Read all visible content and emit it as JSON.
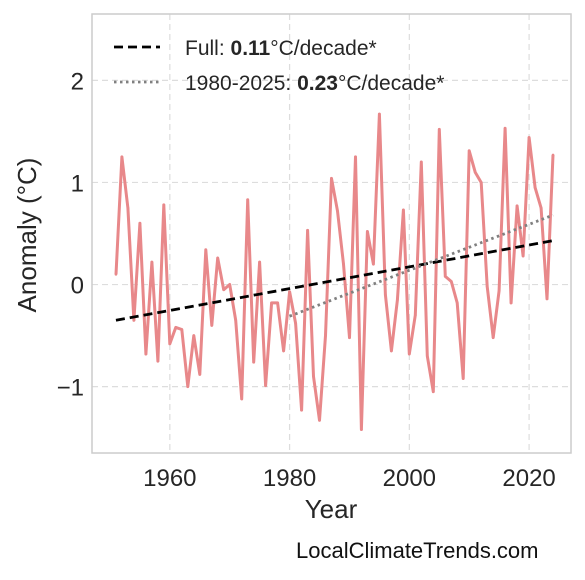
{
  "source_label": "LocalClimateTrends.com",
  "colors": {
    "series": "#e8888a",
    "full_trend": "#000000",
    "recent_trend": "#808080",
    "grid": "#dddddd",
    "frame": "#cccccc"
  },
  "legend": {
    "full": {
      "prefix": "Full: ",
      "value": "0.11",
      "suffix": "°C/decade*"
    },
    "recent": {
      "prefix": "1980-2025: ",
      "value": "0.23",
      "suffix": "°C/decade*"
    }
  },
  "chart_data": {
    "type": "line",
    "xlabel": "Year",
    "ylabel": "Anomaly (°C)",
    "xlim": [
      1947,
      2027
    ],
    "ylim": [
      -1.65,
      2.65
    ],
    "x_ticks": [
      1960,
      1980,
      2000,
      2020
    ],
    "x_tick_labels": [
      "1960",
      "1980",
      "2000",
      "2020"
    ],
    "y_ticks": [
      2,
      1,
      0,
      -1
    ],
    "y_tick_labels": [
      "2",
      "1",
      "0",
      "−1"
    ],
    "grid": true,
    "legend_position": "top-left",
    "series": [
      {
        "x": [
          1951,
          1952,
          1953,
          1954,
          1955,
          1956,
          1957,
          1958,
          1959,
          1960,
          1961,
          1962,
          1963,
          1964,
          1965,
          1966,
          1967,
          1968,
          1969,
          1970,
          1971,
          1972,
          1973,
          1974,
          1975,
          1976,
          1977,
          1978,
          1979,
          1980,
          1981,
          1982,
          1983,
          1984,
          1985,
          1986,
          1987,
          1988,
          1989,
          1990,
          1991,
          1992,
          1993,
          1994,
          1995,
          1996,
          1997,
          1998,
          1999,
          2000,
          2001,
          2002,
          2003,
          2004,
          2005,
          2006,
          2007,
          2008,
          2009,
          2010,
          2011,
          2012,
          2013,
          2014,
          2015,
          2016,
          2017,
          2018,
          2019,
          2020,
          2021,
          2022,
          2023,
          2024
        ],
        "y": [
          0.1,
          1.25,
          0.75,
          -0.35,
          0.6,
          -0.68,
          0.22,
          -0.75,
          0.78,
          -0.58,
          -0.42,
          -0.44,
          -1.0,
          -0.5,
          -0.88,
          0.34,
          -0.4,
          0.26,
          -0.05,
          0.0,
          -0.35,
          -1.12,
          0.83,
          -0.76,
          0.22,
          -0.99,
          -0.18,
          -0.18,
          -0.65,
          -0.07,
          -0.38,
          -1.23,
          0.53,
          -0.9,
          -1.33,
          -0.5,
          1.04,
          0.72,
          0.2,
          -0.52,
          1.25,
          -1.42,
          0.52,
          0.2,
          1.67,
          -0.1,
          -0.65,
          -0.15,
          0.73,
          -0.68,
          -0.3,
          1.2,
          -0.7,
          -1.05,
          1.52,
          0.08,
          0.03,
          -0.18,
          -0.92,
          1.31,
          1.1,
          1.0,
          -0.02,
          -0.52,
          -0.06,
          1.53,
          -0.18,
          0.77,
          0.28,
          1.44,
          0.95,
          0.75,
          -0.14,
          1.27
        ]
      }
    ],
    "trend_lines": [
      {
        "x": [
          1951,
          2024
        ],
        "y": [
          -0.35,
          0.43
        ]
      },
      {
        "x": [
          1980,
          2024
        ],
        "y": [
          -0.31,
          0.68
        ]
      }
    ]
  }
}
